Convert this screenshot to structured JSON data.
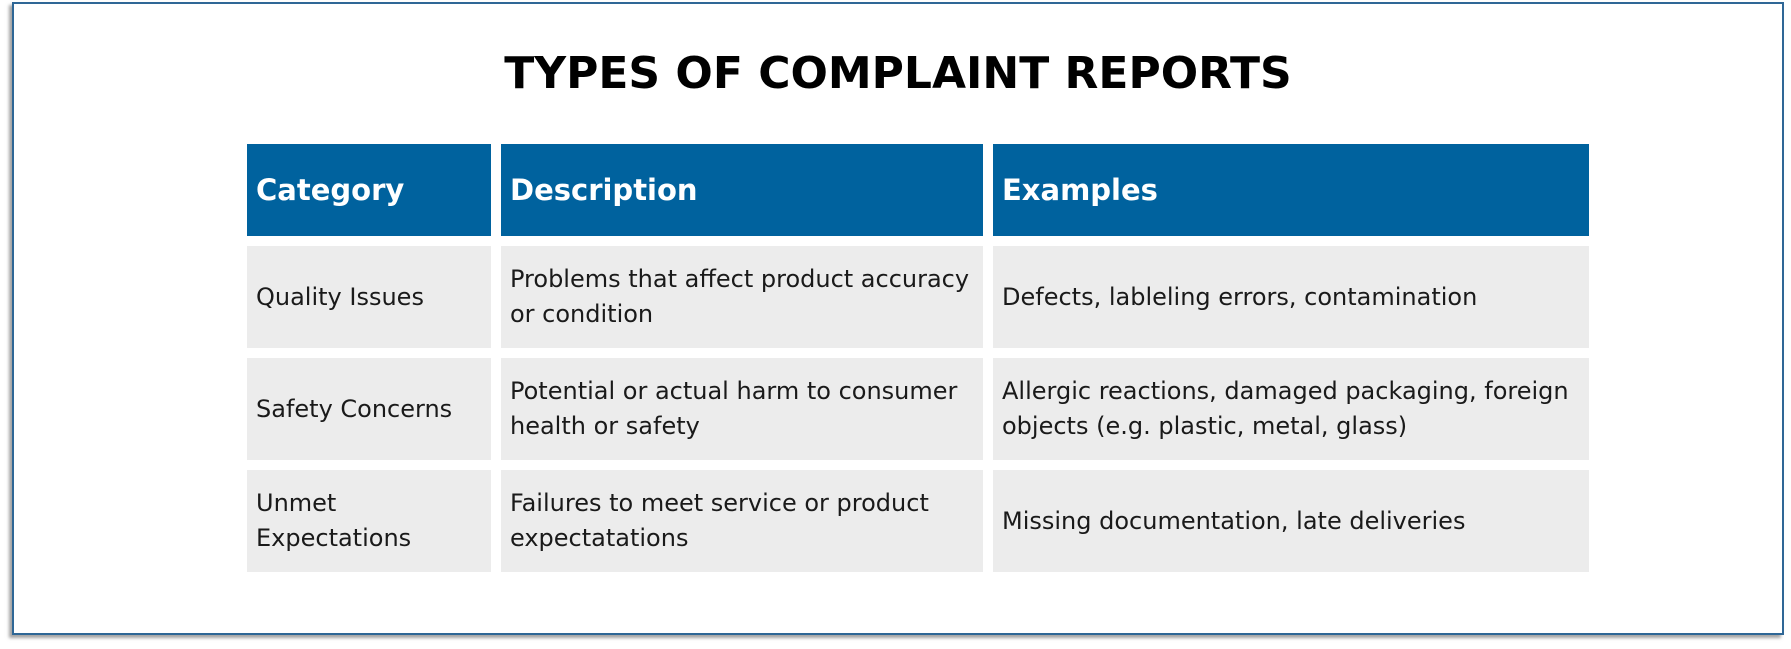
{
  "title": "TYPES OF COMPLAINT REPORTS",
  "table": {
    "headers": [
      "Category",
      "Description",
      "Examples"
    ],
    "rows": [
      {
        "category": "Quality Issues",
        "description": "Problems that affect product accuracy or condition",
        "examples": "Defects, lableling errors, contamination"
      },
      {
        "category": "Safety Concerns",
        "description": "Potential or actual harm to consumer health or safety",
        "examples": "Allergic reactions, damaged packaging, foreign objects (e.g. plastic, metal, glass)"
      },
      {
        "category": "Unmet Expectations",
        "description": "Failures to meet service or product expectatations",
        "examples": "Missing documentation, late deliveries"
      }
    ]
  },
  "colors": {
    "header_bg": "#00629e",
    "cell_bg": "#ececec",
    "frame_border": "#2f6796"
  }
}
